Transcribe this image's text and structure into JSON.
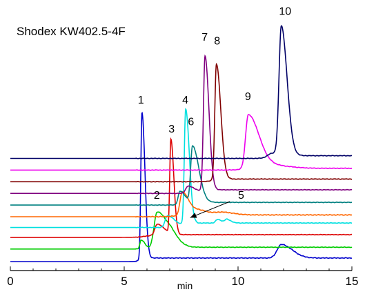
{
  "chart_data": {
    "type": "line",
    "title": "Shodex KW402.5-4F",
    "xlabel": "min",
    "ylabel": "",
    "xlim": [
      0,
      15
    ],
    "x_ticks": [
      0,
      5,
      10,
      15
    ],
    "grid": false,
    "legend": "none",
    "y_units": "relative signal (baseline offset stacked)",
    "series": [
      {
        "color": "#0000cc",
        "baseline": 0,
        "noise": 0.2,
        "peaks": [
          {
            "t": 5.78,
            "h": 16.3,
            "w": 0.05,
            "tail": 0.08
          },
          {
            "t": 11.9,
            "h": 1.5,
            "w": 0.18,
            "tail": 0.3
          }
        ],
        "shift": {
          "t": 5.7,
          "v": 0.4,
          "w": 0.08
        }
      },
      {
        "color": "#00cc00",
        "baseline": 1.4,
        "noise": 0.15,
        "peaks": [
          {
            "t": 5.75,
            "h": 1.0,
            "w": 0.06,
            "tail": 0.1
          },
          {
            "t": 6.45,
            "h": 4.0,
            "w": 0.14,
            "tail": 0.35
          },
          {
            "t": 7.1,
            "h": 0.5,
            "w": 0.15,
            "tail": 0.2
          }
        ],
        "shift": {
          "t": 6.4,
          "v": 0.2,
          "w": 0.1
        }
      },
      {
        "color": "#dd0000",
        "baseline": 2.7,
        "noise": 0.15,
        "peaks": [
          {
            "t": 6.45,
            "h": 1.2,
            "w": 0.1,
            "tail": 0.2
          },
          {
            "t": 7.05,
            "h": 10.5,
            "w": 0.05,
            "tail": 0.08
          }
        ],
        "shift": {
          "t": 6.0,
          "v": 0.3,
          "w": 0.2
        }
      },
      {
        "color": "#00e0e0",
        "baseline": 3.8,
        "noise": 0.15,
        "peaks": [
          {
            "t": 6.9,
            "h": 1.3,
            "w": 0.1,
            "tail": 0.2
          },
          {
            "t": 7.7,
            "h": 12.8,
            "w": 0.06,
            "tail": 0.1
          },
          {
            "t": 9.1,
            "h": 0.4,
            "w": 0.08,
            "tail": 0.1
          },
          {
            "t": 9.5,
            "h": 0.4,
            "w": 0.08,
            "tail": 0.1
          }
        ],
        "shift": {
          "t": 7.5,
          "v": 0.5,
          "w": 0.2
        }
      },
      {
        "color": "#ff6600",
        "baseline": 5.0,
        "noise": 0.2,
        "peaks": [
          {
            "t": 7.55,
            "h": 2.6,
            "w": 0.1,
            "tail": 0.2
          },
          {
            "t": 8.3,
            "h": 0.5,
            "w": 0.2,
            "tail": 0.2
          },
          {
            "t": 9.3,
            "h": 0.3,
            "w": 0.3,
            "tail": 0.2
          }
        ],
        "shift": {
          "t": 7.3,
          "v": 0.2,
          "w": 0.2
        }
      },
      {
        "color": "#008080",
        "baseline": 6.3,
        "noise": 0.15,
        "peaks": [
          {
            "t": 7.45,
            "h": 1.5,
            "w": 0.08,
            "tail": 0.15
          },
          {
            "t": 8.0,
            "h": 6.3,
            "w": 0.08,
            "tail": 0.2
          }
        ],
        "shift": {
          "t": 7.8,
          "v": 0.3,
          "w": 0.2
        }
      },
      {
        "color": "#800080",
        "baseline": 7.6,
        "noise": 0.15,
        "peaks": [
          {
            "t": 8.55,
            "h": 15.0,
            "w": 0.07,
            "tail": 0.1
          },
          {
            "t": 7.8,
            "h": 0.8,
            "w": 0.1,
            "tail": 0.2
          }
        ],
        "shift": {
          "t": 8.4,
          "v": 0.4,
          "w": 0.15
        }
      },
      {
        "color": "#800000",
        "baseline": 8.9,
        "noise": 0.15,
        "peaks": [
          {
            "t": 9.05,
            "h": 12.9,
            "w": 0.07,
            "tail": 0.12
          }
        ],
        "shift": {
          "t": 8.9,
          "v": 0.3,
          "w": 0.15
        }
      },
      {
        "color": "#ee00ee",
        "baseline": 10.2,
        "noise": 0.15,
        "peaks": [
          {
            "t": 10.45,
            "h": 6.0,
            "w": 0.12,
            "tail": 0.35
          },
          {
            "t": 11.6,
            "h": 0.3,
            "w": 0.4,
            "tail": 0.3
          }
        ],
        "shift": {
          "t": 10.2,
          "v": 0.2,
          "w": 0.2
        }
      },
      {
        "color": "#000066",
        "baseline": 11.5,
        "noise": 0.15,
        "peaks": [
          {
            "t": 11.9,
            "h": 14.2,
            "w": 0.1,
            "tail": 0.15
          },
          {
            "t": 11.5,
            "h": 0.5,
            "w": 0.2,
            "tail": 0.3
          }
        ],
        "shift": {
          "t": 11.7,
          "v": 0.3,
          "w": 0.2
        }
      }
    ],
    "peak_labels": [
      {
        "text": "1",
        "t": 5.6,
        "v": 17.6
      },
      {
        "text": "2",
        "t": 6.3,
        "v": 7.0
      },
      {
        "text": "3",
        "t": 6.95,
        "v": 14.4
      },
      {
        "text": "4",
        "t": 7.55,
        "v": 17.6
      },
      {
        "text": "5",
        "t": 10.0,
        "v": 7.0
      },
      {
        "text": "6",
        "t": 7.8,
        "v": 15.2
      },
      {
        "text": "7",
        "t": 8.4,
        "v": 24.6
      },
      {
        "text": "8",
        "t": 8.95,
        "v": 24.2
      },
      {
        "text": "9",
        "t": 10.3,
        "v": 18.0
      },
      {
        "text": "10",
        "t": 11.8,
        "v": 27.5
      }
    ],
    "annotations": [
      {
        "type": "arrow",
        "text_ref": "5",
        "from": {
          "t": 9.65,
          "v": 6.7
        },
        "to": {
          "t": 7.9,
          "v": 4.9
        }
      }
    ]
  }
}
